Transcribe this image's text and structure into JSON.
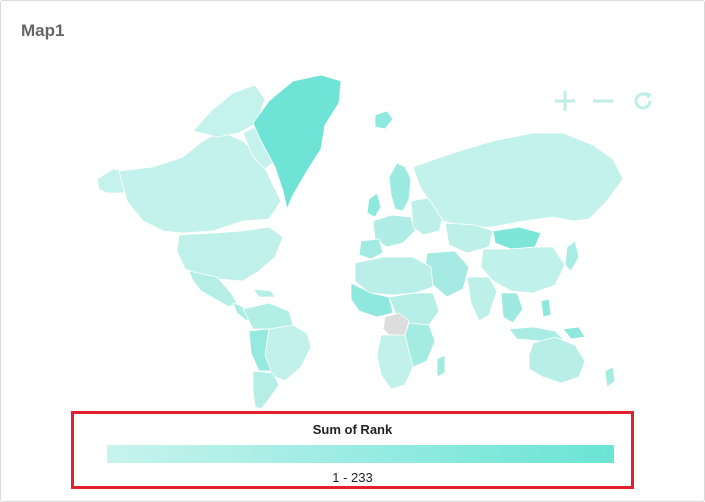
{
  "panel": {
    "title": "Map1"
  },
  "toolbar": {
    "zoom_in_icon": "plus-icon",
    "zoom_out_icon": "minus-icon",
    "reset_icon": "refresh-icon"
  },
  "legend": {
    "title": "Sum of Rank",
    "range": "1 - 233",
    "min": 1,
    "max": 233
  },
  "colors": {
    "scale_low": "#c8f3ee",
    "scale_high": "#6ae4d6",
    "no_data": "#dddddd",
    "highlight_border": "#e3202c",
    "toolbar_icon": "#bfeee9"
  }
}
